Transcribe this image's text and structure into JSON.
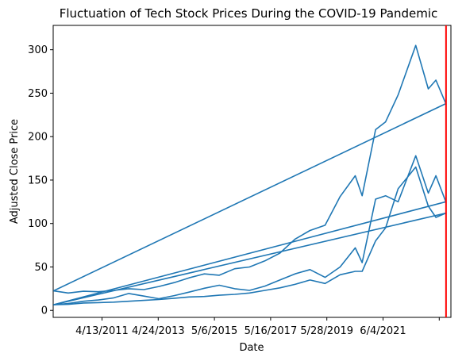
{
  "chart_data": {
    "type": "line",
    "title": "Fluctuation of Tech Stock Prices During the COVID-19 Pandemic",
    "xlabel": "Date",
    "ylabel": "Adjusted Close Price",
    "x_tick_labels": [
      "4/13/2011",
      "4/24/2013",
      "5/6/2015",
      "5/16/2017",
      "5/28/2019",
      "6/4/2021",
      ""
    ],
    "y_ticks": [
      0,
      50,
      100,
      150,
      200,
      250,
      300
    ],
    "ylim": [
      -8,
      328
    ],
    "x_domain": [
      "2010-01-01",
      "2023-03-01"
    ],
    "series_color": "#1f77b4",
    "marker_line_color": "#ff0000",
    "marker_line_date": "2023-01-01",
    "grid": false,
    "legend": "none",
    "series": [
      {
        "points": [
          [
            "2010-01-04",
            6.5
          ],
          [
            "2010-07-01",
            8.0
          ],
          [
            "2011-01-03",
            10.5
          ],
          [
            "2011-07-01",
            12.0
          ],
          [
            "2012-01-03",
            14.5
          ],
          [
            "2012-07-02",
            19.5
          ],
          [
            "2013-01-02",
            16.5
          ],
          [
            "2013-07-01",
            13.5
          ],
          [
            "2014-01-02",
            17.0
          ],
          [
            "2014-07-01",
            21.0
          ],
          [
            "2015-01-02",
            25.5
          ],
          [
            "2015-07-01",
            29.0
          ],
          [
            "2016-01-04",
            25.0
          ],
          [
            "2016-07-01",
            23.0
          ],
          [
            "2017-01-03",
            28.0
          ],
          [
            "2017-07-03",
            35.0
          ],
          [
            "2018-01-02",
            42.0
          ],
          [
            "2018-07-02",
            47.0
          ],
          [
            "2018-12-31",
            38.0
          ],
          [
            "2019-07-01",
            50.0
          ],
          [
            "2019-12-31",
            72.0
          ],
          [
            "2020-03-23",
            55.0
          ],
          [
            "2020-09-01",
            128.0
          ],
          [
            "2020-12-31",
            132.0
          ],
          [
            "2021-06-01",
            125.0
          ],
          [
            "2021-12-31",
            178.0
          ],
          [
            "2022-06-01",
            135.0
          ],
          [
            "2022-09-01",
            155.0
          ],
          [
            "2022-12-30",
            125.0
          ],
          [
            "2010-01-04",
            6.5
          ]
        ]
      },
      {
        "points": [
          [
            "2010-01-04",
            6.5
          ],
          [
            "2010-07-01",
            7.0
          ],
          [
            "2011-01-03",
            8.5
          ],
          [
            "2011-07-01",
            9.0
          ],
          [
            "2012-01-03",
            9.5
          ],
          [
            "2012-07-02",
            10.5
          ],
          [
            "2013-01-02",
            11.5
          ],
          [
            "2013-07-01",
            12.5
          ],
          [
            "2014-01-02",
            14.0
          ],
          [
            "2014-07-01",
            15.5
          ],
          [
            "2015-01-02",
            16.0
          ],
          [
            "2015-07-01",
            17.5
          ],
          [
            "2016-01-04",
            18.5
          ],
          [
            "2016-07-01",
            20.0
          ],
          [
            "2017-01-03",
            23.0
          ],
          [
            "2017-07-03",
            26.0
          ],
          [
            "2018-01-02",
            30.0
          ],
          [
            "2018-07-02",
            35.0
          ],
          [
            "2018-12-31",
            31.0
          ],
          [
            "2019-07-01",
            41.0
          ],
          [
            "2019-12-31",
            45.0
          ],
          [
            "2020-03-23",
            45.0
          ],
          [
            "2020-09-01",
            80.0
          ],
          [
            "2020-12-31",
            95.0
          ],
          [
            "2021-06-01",
            140.0
          ],
          [
            "2021-12-31",
            165.0
          ],
          [
            "2022-06-01",
            120.0
          ],
          [
            "2022-09-01",
            107.0
          ],
          [
            "2022-12-30",
            112.0
          ],
          [
            "2010-01-04",
            6.5
          ]
        ]
      },
      {
        "points": [
          [
            "2010-01-04",
            22.5
          ],
          [
            "2010-07-01",
            20.0
          ],
          [
            "2011-01-03",
            22.0
          ],
          [
            "2011-07-01",
            21.5
          ],
          [
            "2012-01-03",
            23.0
          ],
          [
            "2012-07-02",
            25.0
          ],
          [
            "2013-01-02",
            24.0
          ],
          [
            "2013-07-01",
            27.5
          ],
          [
            "2014-01-02",
            32.0
          ],
          [
            "2014-07-01",
            37.5
          ],
          [
            "2015-01-02",
            42.0
          ],
          [
            "2015-07-01",
            40.5
          ],
          [
            "2016-01-04",
            48.0
          ],
          [
            "2016-07-01",
            50.0
          ],
          [
            "2017-01-03",
            57.0
          ],
          [
            "2017-07-03",
            66.0
          ],
          [
            "2018-01-02",
            82.0
          ],
          [
            "2018-07-02",
            92.0
          ],
          [
            "2018-12-31",
            98.0
          ],
          [
            "2019-07-01",
            131.0
          ],
          [
            "2019-12-31",
            155.0
          ],
          [
            "2020-03-23",
            132.0
          ],
          [
            "2020-09-01",
            208.0
          ],
          [
            "2020-12-31",
            217.0
          ],
          [
            "2021-06-01",
            248.0
          ],
          [
            "2021-12-31",
            305.0
          ],
          [
            "2022-06-01",
            255.0
          ],
          [
            "2022-09-01",
            265.0
          ],
          [
            "2022-12-30",
            238.0
          ],
          [
            "2010-01-04",
            22.5
          ]
        ]
      }
    ]
  }
}
